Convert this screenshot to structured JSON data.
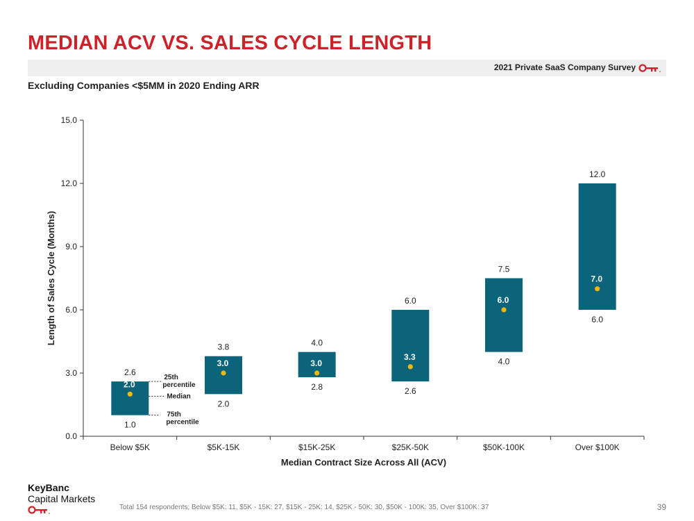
{
  "header": {
    "title": "MEDIAN ACV VS. SALES CYCLE LENGTH",
    "survey_label": "2021 Private SaaS Company Survey",
    "subtitle": "Excluding Companies <$5MM in 2020 Ending ARR"
  },
  "colors": {
    "accent": "#cc2229",
    "box": "#0b6479",
    "median_dot": "#f2b705",
    "band": "#eeeeee"
  },
  "chart_data": {
    "type": "floating-bar",
    "title": "",
    "xlabel": "Median Contract Size Across All (ACV)",
    "ylabel": "Length of Sales Cycle (Months)",
    "ylim": [
      0,
      15
    ],
    "yticks": [
      "0.0",
      "3.0",
      "6.0",
      "9.0",
      "12.0",
      "15.0"
    ],
    "categories": [
      "Below $5K",
      "$5K-15K",
      "$15K-25K",
      "$25K-50K",
      "$50K-100K",
      "Over $100K"
    ],
    "low": [
      1.0,
      2.0,
      2.8,
      2.6,
      4.0,
      6.0
    ],
    "high": [
      2.6,
      3.8,
      4.0,
      6.0,
      7.5,
      12.0
    ],
    "median": [
      2.0,
      3.0,
      3.0,
      3.3,
      6.0,
      7.0
    ],
    "low_labels": [
      "1.0",
      "2.0",
      "2.8",
      "2.6",
      "4.0",
      "6.0"
    ],
    "high_labels": [
      "2.6",
      "3.8",
      "4.0",
      "6.0",
      "7.5",
      "12.0"
    ],
    "median_labels": [
      "2.0",
      "3.0",
      "3.0",
      "3.3",
      "6.0",
      "7.0"
    ],
    "annotations": {
      "top": [
        "25th",
        "percentile"
      ],
      "median": "Median",
      "bottom": [
        "75th",
        "percentile"
      ]
    }
  },
  "footer": {
    "logo_line1": "KeyBanc",
    "logo_line2": "Capital Markets",
    "footnote": "Total 154 respondents; Below $5K: 11, $5K - 15K: 27, $15K - 25K: 14, $25K - 50K: 30, $50K - 100K: 35, Over $100K: 37",
    "page_number": "39"
  }
}
